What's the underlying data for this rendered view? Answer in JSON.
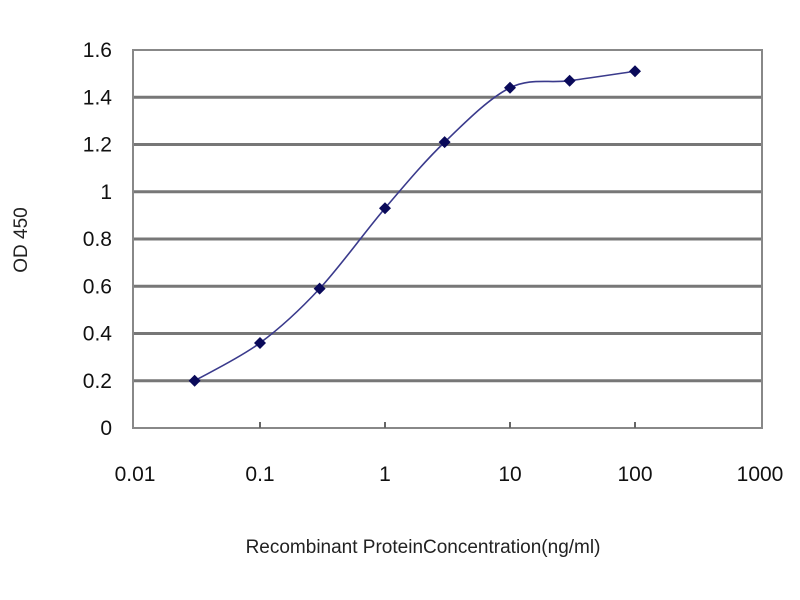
{
  "chart_data": {
    "type": "line",
    "title": "",
    "xlabel": "Recombinant ProteinConcentration(ng/ml)",
    "ylabel": "OD 450",
    "x_scale": "log",
    "xlim": [
      0.01,
      1000
    ],
    "ylim": [
      0,
      1.6
    ],
    "x_ticks": [
      "0.01",
      "0.1",
      "1",
      "10",
      "100",
      "1000"
    ],
    "y_ticks": [
      "0",
      "0.2",
      "0.4",
      "0.6",
      "0.8",
      "1",
      "1.2",
      "1.4",
      "1.6"
    ],
    "grid": "horizontal",
    "series": [
      {
        "x": [
          0.03,
          0.1,
          0.3,
          1,
          3,
          10,
          30,
          100
        ],
        "y": [
          0.2,
          0.36,
          0.59,
          0.93,
          1.21,
          1.44,
          1.47,
          1.51
        ]
      }
    ],
    "colors": {
      "line": "#3a3a8c",
      "marker": "#0a0a5a",
      "grid": "#777777"
    }
  }
}
